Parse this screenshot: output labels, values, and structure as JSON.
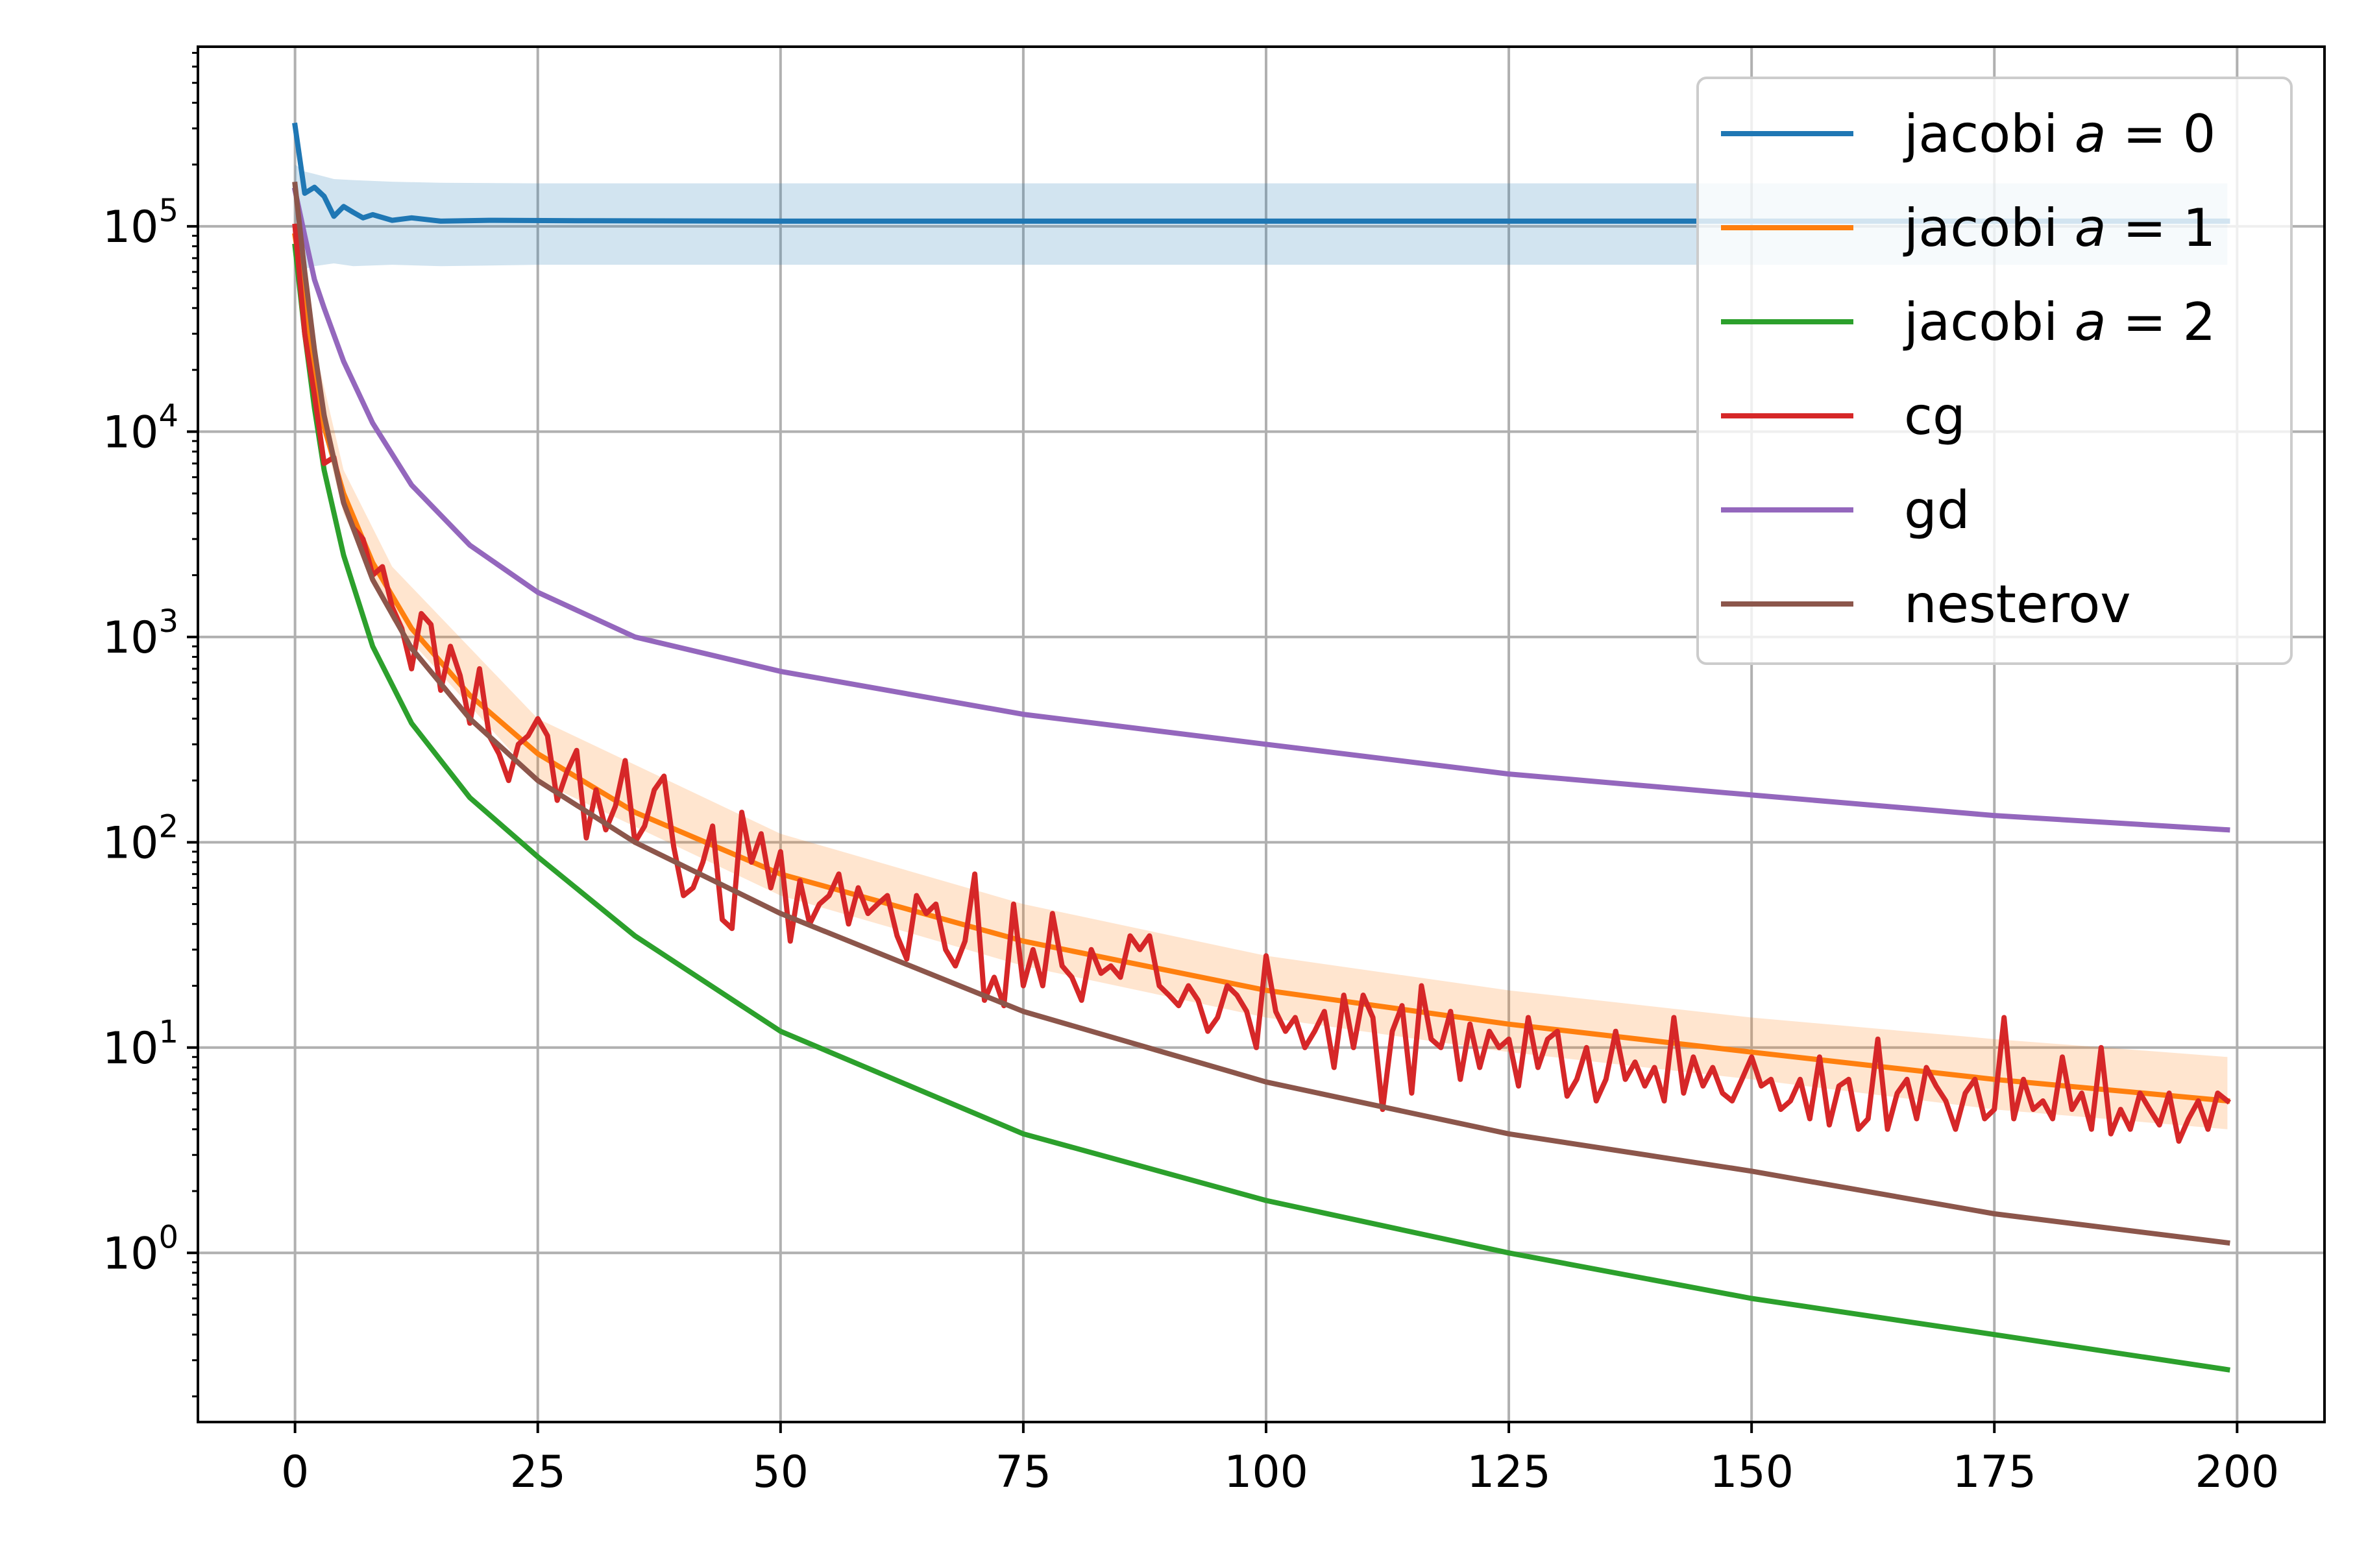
{
  "chart_data": {
    "type": "line",
    "title": "",
    "xlabel": "",
    "ylabel": "",
    "y_scale": "log",
    "xlim": [
      -10,
      209
    ],
    "ylim": [
      0.15,
      750000
    ],
    "grid": true,
    "legend_position": "top-right",
    "x_ticks": [
      0,
      25,
      50,
      75,
      100,
      125,
      150,
      175,
      200
    ],
    "x_tick_labels": [
      "0",
      "25",
      "50",
      "75",
      "100",
      "125",
      "150",
      "175",
      "200"
    ],
    "y_ticks": [
      1,
      10,
      100,
      1000,
      10000,
      100000
    ],
    "y_tick_labels": [
      {
        "base": "10",
        "exp": "0"
      },
      {
        "base": "10",
        "exp": "1"
      },
      {
        "base": "10",
        "exp": "2"
      },
      {
        "base": "10",
        "exp": "3"
      },
      {
        "base": "10",
        "exp": "4"
      },
      {
        "base": "10",
        "exp": "5"
      }
    ],
    "series": [
      {
        "name_parts": [
          "jacobi ",
          "a",
          " = 0"
        ],
        "color": "#1f77b4",
        "x": [
          0,
          1,
          2,
          3,
          4,
          5,
          6,
          7,
          8,
          10,
          12,
          15,
          20,
          30,
          50,
          100,
          150,
          199
        ],
        "y": [
          310000,
          145000,
          155000,
          140000,
          112000,
          125000,
          117000,
          110000,
          114000,
          107000,
          110000,
          106000,
          107000,
          106500,
          106000,
          106000,
          106000,
          106000
        ],
        "band": {
          "x": [
            0,
            1,
            2,
            4,
            6,
            10,
            15,
            25,
            50,
            100,
            150,
            199
          ],
          "lower": [
            60000,
            62000,
            64000,
            66000,
            64000,
            65000,
            64000,
            65000,
            65000,
            65000,
            65000,
            65000
          ],
          "upper": [
            200000,
            185000,
            180000,
            170000,
            168000,
            165000,
            163000,
            162000,
            162000,
            162000,
            162000,
            162000
          ]
        }
      },
      {
        "name_parts": [
          "jacobi ",
          "a",
          " = 1"
        ],
        "color": "#ff7f0e",
        "x": [
          0,
          1,
          2,
          3,
          5,
          8,
          12,
          18,
          25,
          35,
          50,
          75,
          100,
          125,
          150,
          175,
          199
        ],
        "y": [
          90000,
          45000,
          20000,
          10500,
          5000,
          2300,
          1100,
          520,
          270,
          140,
          70,
          33,
          19,
          13,
          9.5,
          7,
          5.5
        ],
        "band": {
          "x": [
            0,
            2,
            5,
            10,
            25,
            50,
            75,
            100,
            125,
            150,
            175,
            199
          ],
          "lower": [
            70000,
            15000,
            4000,
            1200,
            200,
            55,
            25,
            14,
            9.5,
            7,
            5,
            4
          ],
          "upper": [
            110000,
            26000,
            6500,
            2200,
            400,
            110,
            50,
            28,
            19,
            14,
            11,
            9
          ]
        }
      },
      {
        "name_parts": [
          "jacobi ",
          "a",
          " = 2"
        ],
        "color": "#2ca02c",
        "x": [
          0,
          1,
          2,
          3,
          5,
          8,
          12,
          18,
          25,
          35,
          50,
          75,
          100,
          125,
          150,
          175,
          199
        ],
        "y": [
          80000,
          30000,
          13000,
          6500,
          2500,
          900,
          380,
          165,
          85,
          35,
          12,
          3.8,
          1.8,
          1.0,
          0.6,
          0.4,
          0.27
        ]
      },
      {
        "name_parts": [
          "cg"
        ],
        "color": "#d62728",
        "x": [
          0,
          1,
          2,
          3,
          4,
          5,
          6,
          7,
          8,
          9,
          10,
          11,
          12,
          13,
          14,
          15,
          16,
          17,
          18,
          19,
          20,
          21,
          22,
          23,
          24,
          25,
          26,
          27,
          28,
          29,
          30,
          31,
          32,
          33,
          34,
          35,
          36,
          37,
          38,
          39,
          40,
          41,
          42,
          43,
          44,
          45,
          46,
          47,
          48,
          49,
          50,
          51,
          52,
          53,
          54,
          55,
          56,
          57,
          58,
          59,
          60,
          61,
          62,
          63,
          64,
          65,
          66,
          67,
          68,
          69,
          70,
          71,
          72,
          73,
          74,
          75,
          76,
          77,
          78,
          79,
          80,
          81,
          82,
          83,
          84,
          85,
          86,
          87,
          88,
          89,
          90,
          91,
          92,
          93,
          94,
          95,
          96,
          97,
          98,
          99,
          100,
          101,
          102,
          103,
          104,
          105,
          106,
          107,
          108,
          109,
          110,
          111,
          112,
          113,
          114,
          115,
          116,
          117,
          118,
          119,
          120,
          121,
          122,
          123,
          124,
          125,
          126,
          127,
          128,
          129,
          130,
          131,
          132,
          133,
          134,
          135,
          136,
          137,
          138,
          139,
          140,
          141,
          142,
          143,
          144,
          145,
          146,
          147,
          148,
          149,
          150,
          151,
          152,
          153,
          154,
          155,
          156,
          157,
          158,
          159,
          160,
          161,
          162,
          163,
          164,
          165,
          166,
          167,
          168,
          169,
          170,
          171,
          172,
          173,
          174,
          175,
          176,
          177,
          178,
          179,
          180,
          181,
          182,
          183,
          184,
          185,
          186,
          187,
          188,
          189,
          190,
          191,
          192,
          193,
          194,
          195,
          196,
          197,
          198,
          199
        ],
        "y": [
          100000,
          30000,
          15000,
          7000,
          7500,
          4500,
          3400,
          3000,
          2000,
          2200,
          1400,
          1100,
          700,
          1300,
          1150,
          550,
          900,
          650,
          380,
          700,
          330,
          270,
          200,
          300,
          330,
          400,
          330,
          160,
          220,
          280,
          105,
          180,
          115,
          150,
          250,
          100,
          120,
          180,
          210,
          95,
          55,
          60,
          80,
          120,
          42,
          38,
          140,
          80,
          110,
          60,
          90,
          33,
          65,
          40,
          50,
          55,
          70,
          40,
          60,
          45,
          50,
          55,
          35,
          27,
          55,
          45,
          50,
          30,
          25,
          33,
          70,
          17,
          22,
          16,
          50,
          20,
          30,
          20,
          45,
          25,
          22,
          17,
          30,
          23,
          25,
          22,
          35,
          30,
          35,
          20,
          18,
          16,
          20,
          17,
          12,
          14,
          20,
          18,
          15,
          10,
          28,
          15,
          12,
          14,
          10,
          12,
          15,
          8,
          18,
          10,
          18,
          14,
          5,
          12,
          16,
          6,
          20,
          11,
          10,
          15,
          7,
          13,
          8,
          12,
          10,
          11,
          6.5,
          14,
          8,
          11,
          12,
          5.8,
          7,
          10,
          5.5,
          7,
          12,
          7,
          8.5,
          6.5,
          8,
          5.5,
          14,
          6,
          9,
          6.5,
          8,
          6,
          5.5,
          7,
          9,
          6.5,
          7,
          5,
          5.5,
          7,
          4.5,
          9,
          4.2,
          6.5,
          7,
          4,
          4.5,
          11,
          4,
          6,
          7,
          4.5,
          8,
          6.5,
          5.5,
          4,
          6,
          7,
          4.5,
          5,
          14,
          4.5,
          7,
          5,
          5.5,
          4.5,
          9,
          5,
          6,
          4,
          10,
          3.8,
          5,
          4,
          6,
          5,
          4.2,
          6,
          3.5,
          4.5,
          5.5,
          4,
          6,
          5.5
        ]
      },
      {
        "name_parts": [
          "gd"
        ],
        "color": "#9467bd",
        "x": [
          0,
          1,
          2,
          3,
          5,
          8,
          12,
          18,
          25,
          35,
          50,
          75,
          100,
          125,
          150,
          175,
          199
        ],
        "y": [
          150000,
          90000,
          55000,
          40000,
          22000,
          11000,
          5500,
          2800,
          1650,
          1000,
          680,
          420,
          300,
          215,
          170,
          135,
          115
        ]
      },
      {
        "name_parts": [
          "nesterov"
        ],
        "color": "#8c564b",
        "x": [
          0,
          1,
          2,
          3,
          5,
          8,
          12,
          18,
          25,
          35,
          50,
          75,
          100,
          125,
          150,
          175,
          199
        ],
        "y": [
          160000,
          60000,
          25000,
          12000,
          4500,
          1900,
          880,
          400,
          200,
          100,
          45,
          15,
          6.8,
          3.8,
          2.5,
          1.55,
          1.12
        ]
      }
    ]
  }
}
